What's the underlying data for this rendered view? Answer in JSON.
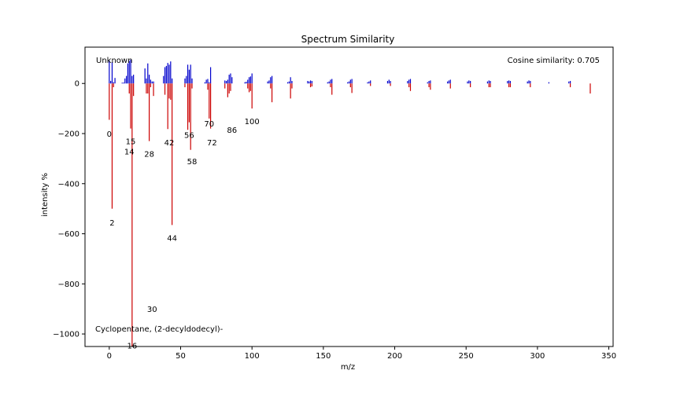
{
  "chart_data": {
    "type": "bar",
    "title": "Spectrum Similarity",
    "xlabel": "m/z",
    "ylabel": "intensity %",
    "xlim": [
      -17,
      353
    ],
    "ylim": [
      -1050,
      145
    ],
    "xticks": [
      0,
      50,
      100,
      150,
      200,
      250,
      300,
      350
    ],
    "yticks": [
      -1000,
      -800,
      -600,
      -400,
      -200,
      0
    ],
    "ytick_labels": [
      "−1000",
      "−800",
      "−600",
      "−400",
      "−200",
      "0"
    ],
    "grid": false,
    "annotations": {
      "top_left": "Unknown",
      "top_right": "Cosine similarity: 0.705",
      "bottom_left": "Cyclopentane, (2-decyldodecyl)-"
    },
    "series": [
      {
        "name": "Unknown",
        "color": "#0000cc",
        "x": [
          0,
          1,
          2,
          3,
          4,
          9,
          10,
          11,
          12,
          13,
          14,
          15,
          16,
          17,
          25,
          26,
          27,
          28,
          29,
          30,
          31,
          38,
          39,
          40,
          41,
          42,
          43,
          44,
          53,
          54,
          55,
          56,
          57,
          58,
          67,
          68,
          69,
          70,
          71,
          81,
          82,
          83,
          84,
          85,
          86,
          95,
          96,
          97,
          98,
          99,
          100,
          111,
          112,
          113,
          114,
          125,
          126,
          127,
          128,
          139,
          140,
          141,
          142,
          153,
          154,
          155,
          156,
          167,
          168,
          169,
          170,
          181,
          182,
          183,
          195,
          196,
          197,
          209,
          210,
          211,
          223,
          224,
          225,
          237,
          238,
          239,
          251,
          252,
          253,
          265,
          266,
          267,
          279,
          280,
          281,
          293,
          294,
          295,
          308,
          322,
          323
        ],
        "y": [
          92,
          10,
          85,
          5,
          22,
          3,
          4,
          20,
          30,
          80,
          90,
          95,
          30,
          35,
          60,
          20,
          80,
          35,
          15,
          8,
          8,
          30,
          65,
          70,
          82,
          75,
          88,
          20,
          20,
          30,
          75,
          55,
          75,
          20,
          5,
          15,
          18,
          5,
          65,
          12,
          10,
          15,
          35,
          40,
          25,
          5,
          7,
          15,
          25,
          28,
          40,
          8,
          12,
          25,
          30,
          5,
          8,
          25,
          10,
          10,
          8,
          12,
          10,
          5,
          8,
          15,
          18,
          5,
          8,
          15,
          18,
          5,
          8,
          12,
          10,
          15,
          10,
          10,
          15,
          18,
          5,
          10,
          12,
          8,
          12,
          15,
          8,
          12,
          10,
          8,
          12,
          10,
          10,
          12,
          10,
          8,
          12,
          10,
          5,
          8,
          10
        ]
      },
      {
        "name": "Cyclopentane, (2-decyldodecyl)-",
        "color": "#cc0000",
        "x": [
          0,
          2,
          3,
          14,
          15,
          16,
          17,
          26,
          27,
          28,
          29,
          31,
          39,
          41,
          42,
          43,
          44,
          53,
          55,
          56,
          57,
          58,
          69,
          70,
          71,
          81,
          83,
          84,
          85,
          97,
          98,
          99,
          100,
          113,
          114,
          127,
          128,
          141,
          142,
          155,
          156,
          169,
          170,
          183,
          197,
          210,
          211,
          224,
          225,
          239,
          253,
          266,
          267,
          280,
          281,
          295,
          323,
          337
        ],
        "y": [
          -145,
          -500,
          -15,
          -40,
          -180,
          -1050,
          -50,
          -40,
          -40,
          -230,
          -15,
          -50,
          -45,
          -182,
          -60,
          -65,
          -565,
          -15,
          -185,
          -155,
          -265,
          -20,
          -25,
          -140,
          -180,
          -20,
          -55,
          -40,
          -30,
          -20,
          -35,
          -30,
          -100,
          -20,
          -75,
          -60,
          -20,
          -15,
          -12,
          -15,
          -45,
          -15,
          -38,
          -10,
          -10,
          -15,
          -30,
          -15,
          -25,
          -20,
          -15,
          -15,
          -15,
          -15,
          -15,
          -15,
          -15,
          -40
        ]
      }
    ],
    "data_labels": [
      {
        "text": "0",
        "x": 0,
        "y": -200
      },
      {
        "text": "2",
        "x": 2,
        "y": -555
      },
      {
        "text": "14",
        "x": 14,
        "y": -270
      },
      {
        "text": "15",
        "x": 15,
        "y": -230
      },
      {
        "text": "16",
        "x": 16,
        "y": -1045
      },
      {
        "text": "28",
        "x": 28,
        "y": -280
      },
      {
        "text": "30",
        "x": 30,
        "y": -900
      },
      {
        "text": "42",
        "x": 42,
        "y": -235
      },
      {
        "text": "44",
        "x": 44,
        "y": -615
      },
      {
        "text": "56",
        "x": 56,
        "y": -205
      },
      {
        "text": "58",
        "x": 58,
        "y": -310
      },
      {
        "text": "70",
        "x": 70,
        "y": -160
      },
      {
        "text": "72",
        "x": 72,
        "y": -235
      },
      {
        "text": "86",
        "x": 86,
        "y": -185
      },
      {
        "text": "100",
        "x": 100,
        "y": -150
      }
    ]
  }
}
